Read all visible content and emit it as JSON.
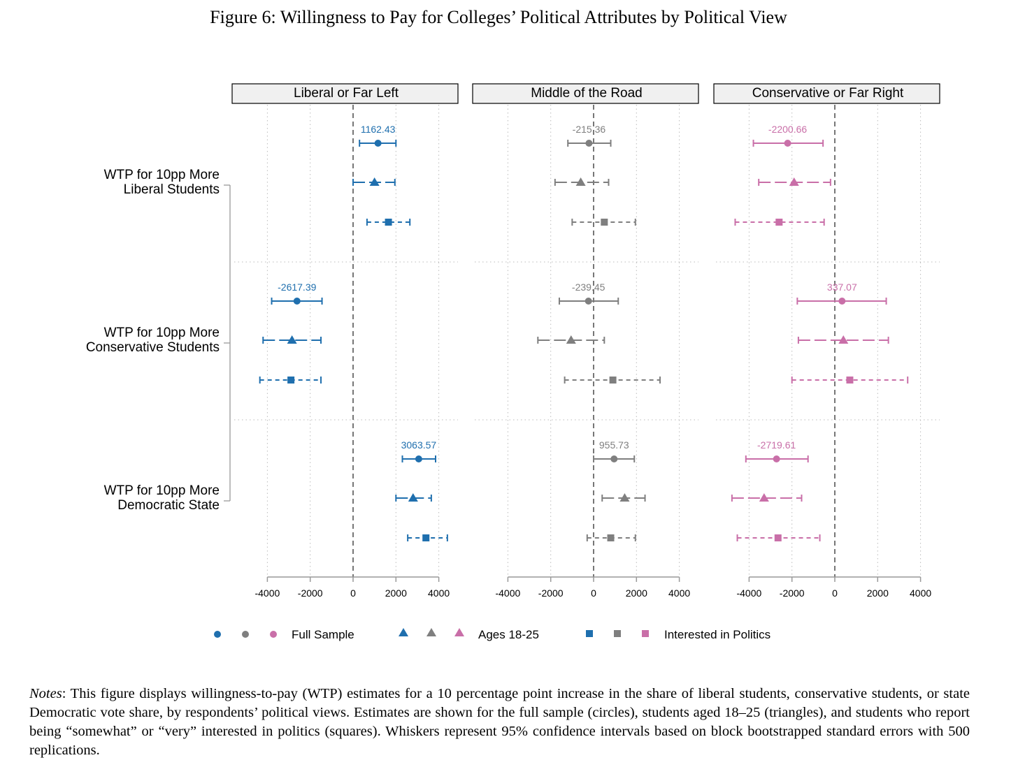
{
  "figure": {
    "title": "Figure 6: Willingness to Pay for Colleges’ Political Attributes by Political View",
    "notes_label": "Notes",
    "notes_text": ": This figure displays willingness-to-pay (WTP) estimates for a 10 percentage point increase in the share of liberal students, conservative students, or state Democratic vote share, by respondents’ political views. Estimates are shown for the full sample (circles), students aged 18–25 (triangles), and students who report being “somewhat” or “very” interested in politics (squares). Whiskers represent 95% confidence intervals based on block bootstrapped standard errors with 500 replications."
  },
  "chart_data": {
    "type": "scatter",
    "subtype": "coefficient-plot-with-confidence-intervals",
    "xlim": [
      -4000,
      4000
    ],
    "xticks": [
      -4000,
      -2000,
      0,
      2000,
      4000
    ],
    "panels": [
      "Liberal or Far Left",
      "Middle of the Road",
      "Conservative or Far Right"
    ],
    "panel_colors": [
      "#1f6fae",
      "#7f7f7f",
      "#c96fa8"
    ],
    "groups": [
      {
        "label_line1": "WTP for 10pp More",
        "label_line2": "Liberal Students"
      },
      {
        "label_line1": "WTP for 10pp More",
        "label_line2": "Conservative Students"
      },
      {
        "label_line1": "WTP for 10pp More",
        "label_line2": "Democratic State"
      }
    ],
    "series": [
      {
        "name": "Full Sample",
        "marker": "circle",
        "line": "solid"
      },
      {
        "name": "Ages 18-25",
        "marker": "triangle",
        "line": "longdash"
      },
      {
        "name": "Interested in Politics",
        "marker": "square",
        "line": "shortdash"
      }
    ],
    "estimates": [
      [
        [
          {
            "est": 1162.43,
            "lo": 300,
            "hi": 2000,
            "label": "1162.43"
          },
          {
            "est": 1000,
            "lo": 0,
            "hi": 1950
          },
          {
            "est": 1650,
            "lo": 650,
            "hi": 2650
          }
        ],
        [
          {
            "est": -215.36,
            "lo": -1200,
            "hi": 800,
            "label": "-215.36"
          },
          {
            "est": -600,
            "lo": -1800,
            "hi": 700
          },
          {
            "est": 500,
            "lo": -1000,
            "hi": 1950
          }
        ],
        [
          {
            "est": -2200.66,
            "lo": -3800,
            "hi": -550,
            "label": "-2200.66"
          },
          {
            "est": -1900,
            "lo": -3550,
            "hi": -200
          },
          {
            "est": -2600,
            "lo": -4650,
            "hi": -500
          }
        ]
      ],
      [
        [
          {
            "est": -2617.39,
            "lo": -3800,
            "hi": -1450,
            "label": "-2617.39"
          },
          {
            "est": -2850,
            "lo": -4200,
            "hi": -1500
          },
          {
            "est": -2900,
            "lo": -4350,
            "hi": -1500
          }
        ],
        [
          {
            "est": -239.45,
            "lo": -1600,
            "hi": 1150,
            "label": "-239.45"
          },
          {
            "est": -1050,
            "lo": -2600,
            "hi": 500
          },
          {
            "est": 900,
            "lo": -1350,
            "hi": 3100
          }
        ],
        [
          {
            "est": 337.07,
            "lo": -1750,
            "hi": 2400,
            "label": "337.07"
          },
          {
            "est": 400,
            "lo": -1700,
            "hi": 2500
          },
          {
            "est": 700,
            "lo": -2000,
            "hi": 3400
          }
        ]
      ],
      [
        [
          {
            "est": 3063.57,
            "lo": 2300,
            "hi": 3850,
            "label": "3063.57"
          },
          {
            "est": 2800,
            "lo": 2000,
            "hi": 3650
          },
          {
            "est": 3400,
            "lo": 2550,
            "hi": 4400
          }
        ],
        [
          {
            "est": 955.73,
            "lo": 0,
            "hi": 1900,
            "label": "955.73"
          },
          {
            "est": 1450,
            "lo": 400,
            "hi": 2400
          },
          {
            "est": 800,
            "lo": -300,
            "hi": 1950
          }
        ],
        [
          {
            "est": -2719.61,
            "lo": -4150,
            "hi": -1250,
            "label": "-2719.61"
          },
          {
            "est": -3300,
            "lo": -5050,
            "hi": -1550
          },
          {
            "est": -2650,
            "lo": -4550,
            "hi": -700
          }
        ]
      ]
    ]
  }
}
